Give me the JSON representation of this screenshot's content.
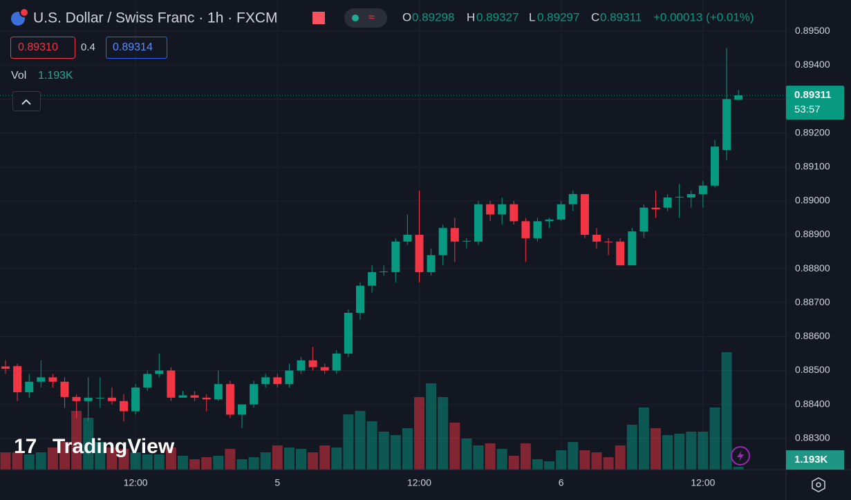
{
  "chart_data": {
    "type": "candlestick",
    "title": "U.S. Dollar / Swiss Franc · 1h · FXCM",
    "header": {
      "open_label": "O",
      "high_label": "H",
      "low_label": "L",
      "close_label": "C",
      "change": "+0.00013 (+0.01%)",
      "bid": "0.89310",
      "spread": 0.4,
      "ask": 0.89314,
      "volume_title": "Vol",
      "countdown": "53:57",
      "brand": "TradingView"
    },
    "categories": [
      null,
      null,
      null,
      null,
      null,
      null,
      null,
      null,
      null,
      null,
      null,
      "12:00",
      null,
      null,
      null,
      null,
      null,
      null,
      null,
      null,
      null,
      null,
      null,
      "5",
      null,
      null,
      null,
      null,
      null,
      null,
      null,
      null,
      null,
      null,
      null,
      "12:00",
      null,
      null,
      null,
      null,
      null,
      null,
      null,
      null,
      null,
      null,
      null,
      "6",
      null,
      null,
      null,
      null,
      null,
      null,
      null,
      null,
      null,
      null,
      null,
      "12:00",
      null,
      null,
      null
    ],
    "open": [
      0.88512,
      0.88513,
      0.88436,
      0.88467,
      0.8848,
      0.88467,
      0.88422,
      0.8841,
      0.8842,
      0.8842,
      0.8841,
      0.8838,
      0.8845,
      0.8849,
      0.885,
      0.8842,
      0.88427,
      0.8842,
      0.88415,
      0.8846,
      0.8837,
      0.884,
      0.8846,
      0.8848,
      0.8846,
      0.885,
      0.8853,
      0.8851,
      0.885,
      0.8855,
      0.8867,
      0.8875,
      0.8879,
      0.8879,
      0.8888,
      0.889,
      0.8879,
      0.8884,
      0.8892,
      0.8888,
      0.8888,
      0.8899,
      0.8896,
      0.8899,
      0.8894,
      0.8889,
      0.8894,
      0.88945,
      0.8899,
      0.8902,
      0.889,
      0.8888,
      0.8888,
      0.8881,
      0.8891,
      0.8898,
      0.8898,
      0.8901,
      0.8901,
      0.8902,
      0.89045,
      0.8915,
      0.89298
    ],
    "high": [
      0.8853,
      0.8852,
      0.8849,
      0.8853,
      0.8849,
      0.8848,
      0.8843,
      0.8848,
      0.8848,
      0.8845,
      0.8843,
      0.8846,
      0.885,
      0.8855,
      0.8851,
      0.8844,
      0.8844,
      0.8843,
      0.885,
      0.8847,
      0.8839,
      0.8847,
      0.8849,
      0.8849,
      0.8852,
      0.8854,
      0.8857,
      0.8852,
      0.8856,
      0.8868,
      0.8876,
      0.8881,
      0.8881,
      0.8889,
      0.8896,
      0.8903,
      0.8886,
      0.8893,
      0.8895,
      0.8889,
      0.89,
      0.89,
      0.8901,
      0.89,
      0.8895,
      0.8895,
      0.8895,
      0.89,
      0.8903,
      0.8902,
      0.8892,
      0.8889,
      0.8889,
      0.8892,
      0.8899,
      0.8903,
      0.8902,
      0.8905,
      0.8903,
      0.8906,
      0.8918,
      0.8945,
      0.89327
    ],
    "low": [
      0.8849,
      0.8841,
      0.8842,
      0.8845,
      0.8845,
      0.8839,
      0.8836,
      0.8835,
      0.8839,
      0.884,
      0.8835,
      0.8837,
      0.8844,
      0.8848,
      0.8841,
      0.8842,
      0.8841,
      0.8838,
      0.8841,
      0.8836,
      0.8833,
      0.8839,
      0.8845,
      0.8845,
      0.8845,
      0.8849,
      0.885,
      0.8849,
      0.8849,
      0.8854,
      0.8865,
      0.8873,
      0.8878,
      0.8876,
      0.8887,
      0.8876,
      0.8878,
      0.8881,
      0.8882,
      0.8886,
      0.8887,
      0.8894,
      0.8893,
      0.8893,
      0.8882,
      0.8888,
      0.8892,
      0.8894,
      0.8897,
      0.8889,
      0.8886,
      0.8884,
      0.8881,
      0.8882,
      0.8889,
      0.8895,
      0.8897,
      0.8895,
      0.8898,
      0.8898,
      0.8904,
      0.8912,
      0.89297
    ],
    "close": [
      0.88505,
      0.88436,
      0.88467,
      0.8848,
      0.88467,
      0.88422,
      0.8841,
      0.8842,
      0.8842,
      0.8841,
      0.8838,
      0.8845,
      0.8849,
      0.885,
      0.8842,
      0.88427,
      0.8842,
      0.88415,
      0.8846,
      0.8837,
      0.884,
      0.8846,
      0.8848,
      0.8846,
      0.885,
      0.8853,
      0.8851,
      0.885,
      0.8855,
      0.8867,
      0.8875,
      0.8879,
      0.88792,
      0.8888,
      0.889,
      0.8879,
      0.8884,
      0.8892,
      0.8888,
      0.88882,
      0.8899,
      0.8896,
      0.8899,
      0.8894,
      0.8889,
      0.8894,
      0.88945,
      0.8899,
      0.8902,
      0.889,
      0.8888,
      0.88878,
      0.8881,
      0.8891,
      0.8898,
      0.88975,
      0.8901,
      0.89012,
      0.8902,
      0.89045,
      0.8916,
      0.893,
      0.89311
    ],
    "volume": [
      7500,
      7500,
      6600,
      7500,
      9600,
      12000,
      25500,
      22500,
      12000,
      9600,
      9000,
      7500,
      6600,
      6600,
      9600,
      6000,
      4500,
      5400,
      6000,
      9000,
      4500,
      5400,
      7500,
      10500,
      9600,
      9000,
      7500,
      10500,
      9600,
      24000,
      25500,
      21000,
      16500,
      15000,
      18000,
      31500,
      37500,
      31500,
      20400,
      13500,
      10500,
      11400,
      9000,
      6000,
      11400,
      4500,
      3600,
      8400,
      12000,
      8400,
      7500,
      5400,
      10500,
      19500,
      27000,
      18000,
      15000,
      15600,
      16500,
      16500,
      27000,
      51000,
      1193
    ],
    "volume_label": "1.193K",
    "vlim": [
      0,
      69000
    ],
    "up_color": "#089981",
    "down_color": "#f23645",
    "ylim": [
      0.88208,
      0.89592
    ],
    "yticks": [
      {
        "value": 0.895,
        "label": "0.89500"
      },
      {
        "value": 0.894,
        "label": "0.89400"
      },
      {
        "value": 0.893,
        "label": "0.89300"
      },
      {
        "value": 0.892,
        "label": "0.89200"
      },
      {
        "value": 0.891,
        "label": "0.89100"
      },
      {
        "value": 0.89,
        "label": "0.89000"
      },
      {
        "value": 0.889,
        "label": "0.88900"
      },
      {
        "value": 0.888,
        "label": "0.88800"
      },
      {
        "value": 0.887,
        "label": "0.88700"
      },
      {
        "value": 0.886,
        "label": "0.88600"
      },
      {
        "value": 0.885,
        "label": "0.88500"
      },
      {
        "value": 0.884,
        "label": "0.88400"
      },
      {
        "value": 0.883,
        "label": "0.88300"
      }
    ],
    "grid": true
  }
}
